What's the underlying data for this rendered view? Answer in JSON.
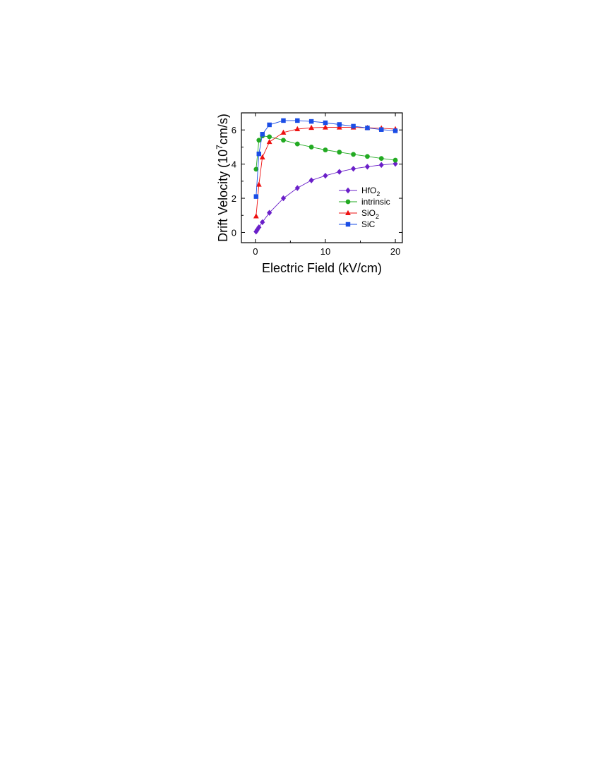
{
  "chart_data": {
    "type": "line",
    "xlabel": "Electric Field (kV/cm)",
    "ylabel": {
      "prefix": "Drift Velocity (10",
      "superscript": "7",
      "suffix": "cm/s)"
    },
    "xlim": [
      -2,
      21
    ],
    "ylim": [
      -0.6,
      7
    ],
    "xticks": [
      0,
      10,
      20
    ],
    "yticks": [
      0,
      2,
      4,
      6
    ],
    "grid": false,
    "legend_position": "lower-right",
    "series": [
      {
        "name": "HfO",
        "name_subscript": "2",
        "marker": "diamond",
        "color": "#6a1fc9",
        "x": [
          0.1,
          0.25,
          0.5,
          1,
          2,
          4,
          6,
          8,
          10,
          12,
          14,
          16,
          18,
          20
        ],
        "y": [
          0.05,
          0.15,
          0.3,
          0.6,
          1.15,
          2.0,
          2.6,
          3.05,
          3.32,
          3.55,
          3.73,
          3.85,
          3.95,
          4.02
        ]
      },
      {
        "name": "intrinsic",
        "name_subscript": "",
        "marker": "circle",
        "color": "#22aa22",
        "x": [
          0.1,
          0.5,
          1,
          2,
          4,
          6,
          8,
          10,
          12,
          14,
          16,
          18,
          20
        ],
        "y": [
          3.7,
          5.4,
          5.65,
          5.6,
          5.4,
          5.18,
          5.0,
          4.83,
          4.7,
          4.57,
          4.45,
          4.33,
          4.23
        ]
      },
      {
        "name": "SiO",
        "name_subscript": "2",
        "marker": "triangle",
        "color": "#ee1111",
        "x": [
          0.1,
          0.5,
          1,
          2,
          4,
          6,
          8,
          10,
          12,
          14,
          16,
          18,
          20
        ],
        "y": [
          0.95,
          2.8,
          4.4,
          5.3,
          5.85,
          6.05,
          6.13,
          6.15,
          6.15,
          6.15,
          6.13,
          6.1,
          6.05
        ]
      },
      {
        "name": "SiC",
        "name_subscript": "",
        "marker": "square",
        "color": "#1a4de6",
        "x": [
          0.1,
          0.5,
          1,
          2,
          4,
          6,
          8,
          10,
          12,
          14,
          16,
          18,
          20
        ],
        "y": [
          2.1,
          4.6,
          5.75,
          6.3,
          6.55,
          6.55,
          6.5,
          6.42,
          6.32,
          6.22,
          6.12,
          6.02,
          5.95
        ]
      }
    ]
  }
}
